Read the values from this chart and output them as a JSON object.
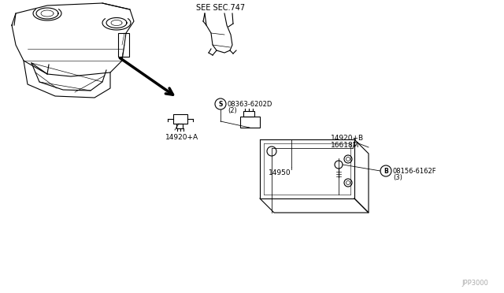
{
  "bg_color": "#ffffff",
  "line_color": "#000000",
  "fig_width": 6.4,
  "fig_height": 3.72,
  "dpi": 100,
  "watermark": "JPP3000",
  "labels": {
    "see_sec": "SEE SEC.747",
    "part_14920A": "14920+A",
    "part_14920B": "14920+B",
    "part_16618M": "16618M",
    "part_S": "S 08363-6202D",
    "part_S_qty": "(2)",
    "part_14950": "14950",
    "part_B": "B 08156-6162F",
    "part_B_qty": "(3)"
  }
}
